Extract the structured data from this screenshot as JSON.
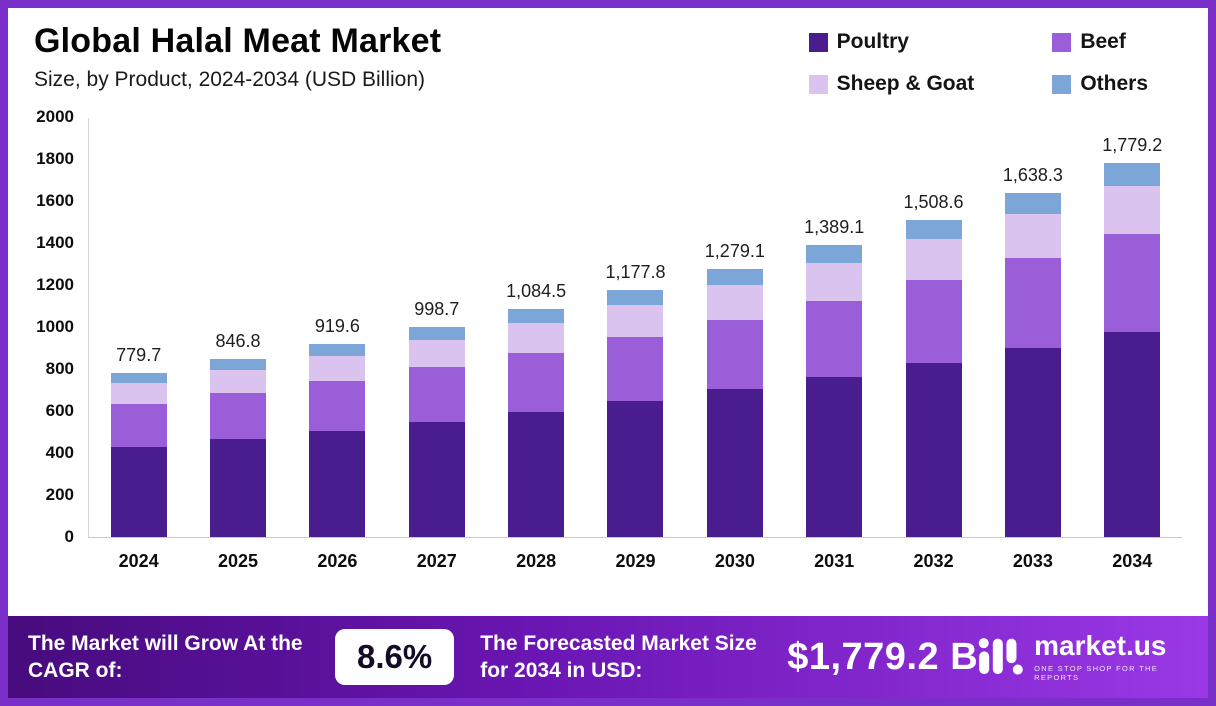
{
  "header": {
    "title": "Global Halal Meat Market",
    "subtitle": "Size, by Product, 2024-2034 (USD Billion)"
  },
  "chart_data": {
    "type": "bar",
    "stacked": true,
    "title": "Global Halal Meat Market Size, by Product, 2024-2034 (USD Billion)",
    "categories": [
      "2024",
      "2025",
      "2026",
      "2027",
      "2028",
      "2029",
      "2030",
      "2031",
      "2032",
      "2033",
      "2034"
    ],
    "series": [
      {
        "name": "Poultry",
        "color": "#4a1d8f",
        "values": [
          428.8,
          465.7,
          505.8,
          549.3,
          596.5,
          647.8,
          703.5,
          764.0,
          829.7,
          901.1,
          978.6
        ]
      },
      {
        "name": "Beef",
        "color": "#9a5ed8",
        "values": [
          202.7,
          220.2,
          239.1,
          259.7,
          282.0,
          306.2,
          332.6,
          361.2,
          392.2,
          425.9,
          462.6
        ]
      },
      {
        "name": "Sheep & Goat",
        "color": "#dbc3f0",
        "values": [
          101.4,
          110.1,
          119.5,
          129.8,
          141.0,
          153.1,
          166.3,
          180.6,
          196.1,
          213.0,
          231.3
        ]
      },
      {
        "name": "Others",
        "color": "#7da6d8",
        "values": [
          46.8,
          50.8,
          55.2,
          59.9,
          65.0,
          70.7,
          76.7,
          83.3,
          90.6,
          98.3,
          106.7
        ]
      }
    ],
    "totals": [
      779.7,
      846.8,
      919.6,
      998.7,
      1084.5,
      1177.8,
      1279.1,
      1389.1,
      1508.6,
      1638.3,
      1779.2
    ],
    "total_labels": [
      "779.7",
      "846.8",
      "919.6",
      "998.7",
      "1,084.5",
      "1,177.8",
      "1,279.1",
      "1,389.1",
      "1,508.6",
      "1,638.3",
      "1,779.2"
    ],
    "xlabel": "",
    "ylabel": "",
    "ylim": [
      0,
      2000
    ],
    "yticks": [
      0,
      200,
      400,
      600,
      800,
      1000,
      1200,
      1400,
      1600,
      1800,
      2000
    ],
    "grid": false,
    "legend_position": "top-right"
  },
  "footer": {
    "cagr_label": "The Market will Grow At the CAGR of:",
    "cagr_value": "8.6%",
    "forecast_label": "The Forecasted Market Size for 2034 in USD:",
    "forecast_value": "$1,779.2 B",
    "brand": "market.us",
    "brand_tagline": "ONE STOP SHOP FOR THE REPORTS"
  }
}
